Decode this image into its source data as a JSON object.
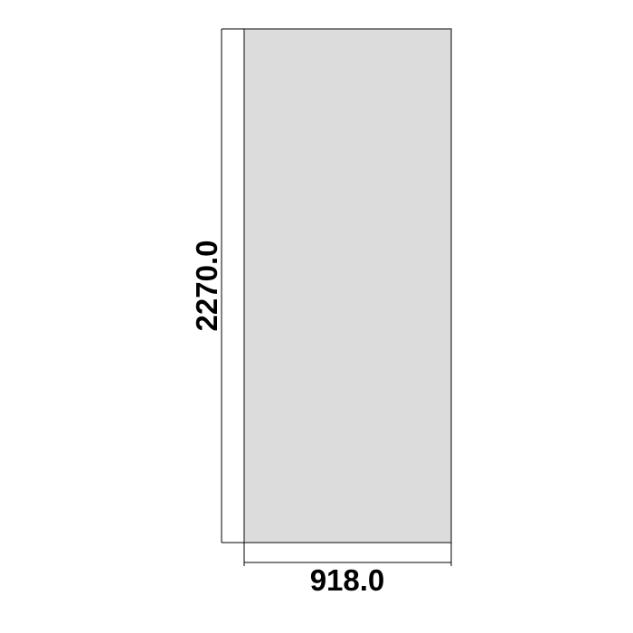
{
  "drawing": {
    "width_label": "918.0",
    "height_label": "2270.0",
    "panel_fill": "#dcdcdc",
    "panel_stroke": "#555555",
    "dimension_line_color": "#000000"
  }
}
